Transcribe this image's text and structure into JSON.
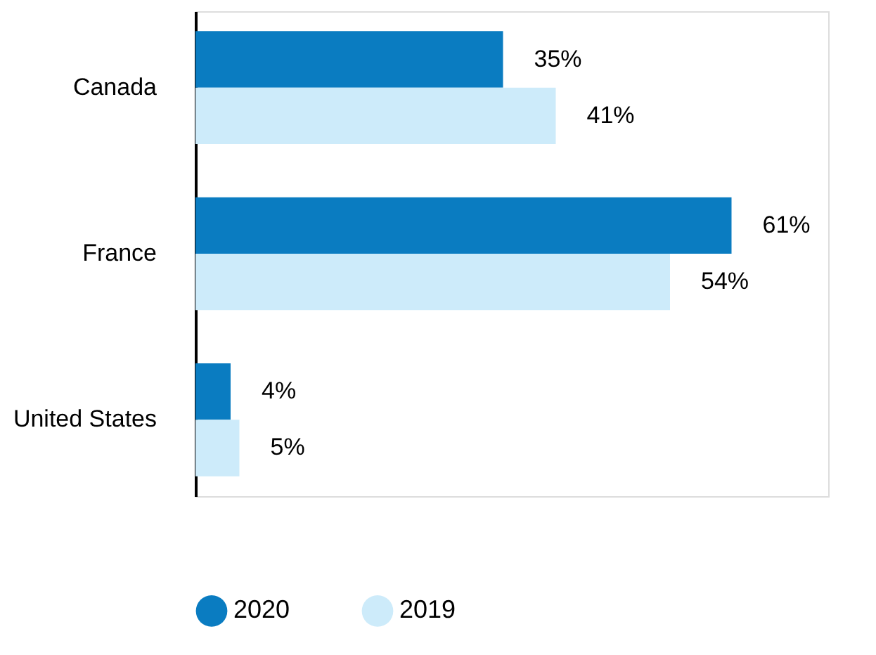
{
  "chart_data": {
    "type": "bar",
    "orientation": "horizontal",
    "categories": [
      "Canada",
      "France",
      "United States"
    ],
    "series": [
      {
        "name": "2020",
        "color": "#0a7cc1",
        "values": [
          35,
          61,
          4
        ],
        "value_labels": [
          "35%",
          "61%",
          "4%"
        ]
      },
      {
        "name": "2019",
        "color": "#cdebfa",
        "values": [
          41,
          54,
          5
        ],
        "value_labels": [
          "41%",
          "54%",
          "5%"
        ]
      }
    ],
    "xlim": [
      0,
      72
    ],
    "tick_labels": "y",
    "legend": "bottom"
  }
}
